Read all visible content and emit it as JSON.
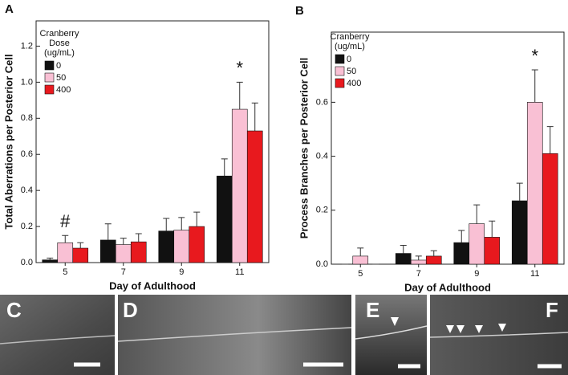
{
  "chart_data": [
    {
      "type": "bar",
      "panel_label": "A",
      "ylabel": "Total Aberrations per Posterior Cell",
      "xlabel": "Day of Adulthood",
      "legend_title": [
        "Cranberry",
        "Dose",
        "(ug/mL)"
      ],
      "categories": [
        "5",
        "7",
        "9",
        "11"
      ],
      "series": [
        {
          "name": "0",
          "color": "#111111",
          "values": [
            0.015,
            0.125,
            0.175,
            0.48
          ],
          "errors": [
            0.01,
            0.09,
            0.07,
            0.095
          ]
        },
        {
          "name": "50",
          "color": "#f9c0d4",
          "values": [
            0.11,
            0.1,
            0.18,
            0.85
          ],
          "errors": [
            0.04,
            0.035,
            0.07,
            0.15
          ]
        },
        {
          "name": "400",
          "color": "#e8191e",
          "values": [
            0.08,
            0.115,
            0.2,
            0.73
          ],
          "errors": [
            0.03,
            0.045,
            0.08,
            0.155
          ]
        }
      ],
      "ylim": [
        0,
        1.34
      ],
      "yticks": [
        {
          "value": 0,
          "label": "0.0"
        },
        0.2,
        0.4,
        0.6,
        0.8,
        {
          "value": 1,
          "label": "1.0"
        },
        1.2
      ],
      "annotations": [
        {
          "text": "#",
          "x": "5"
        },
        {
          "text": "*",
          "x": "11"
        }
      ]
    },
    {
      "type": "bar",
      "panel_label": "B",
      "ylabel": "Process Branches per Posterior Cell",
      "xlabel": "Day of Adulthood",
      "legend_title": [
        "Cranberry",
        "(ug/mL)"
      ],
      "categories": [
        "5",
        "7",
        "9",
        "11"
      ],
      "series": [
        {
          "name": "0",
          "color": "#111111",
          "values": [
            0,
            0.04,
            0.08,
            0.235
          ],
          "errors": [
            0,
            0.03,
            0.045,
            0.065
          ]
        },
        {
          "name": "50",
          "color": "#f9c0d4",
          "values": [
            0.03,
            0.015,
            0.15,
            0.6
          ],
          "errors": [
            0.03,
            0.015,
            0.07,
            0.12
          ]
        },
        {
          "name": "400",
          "color": "#e8191e",
          "values": [
            0,
            0.03,
            0.1,
            0.41
          ],
          "errors": [
            0,
            0.02,
            0.06,
            0.1
          ]
        }
      ],
      "ylim": [
        0,
        0.86
      ],
      "yticks": [
        {
          "value": 0,
          "label": "0.0"
        },
        0.2,
        0.4,
        0.6
      ],
      "annotations": [
        {
          "text": "*",
          "x": "11"
        }
      ]
    }
  ],
  "panels": [
    {
      "label": "C"
    },
    {
      "label": "D"
    },
    {
      "label": "E"
    },
    {
      "label": "F"
    }
  ]
}
